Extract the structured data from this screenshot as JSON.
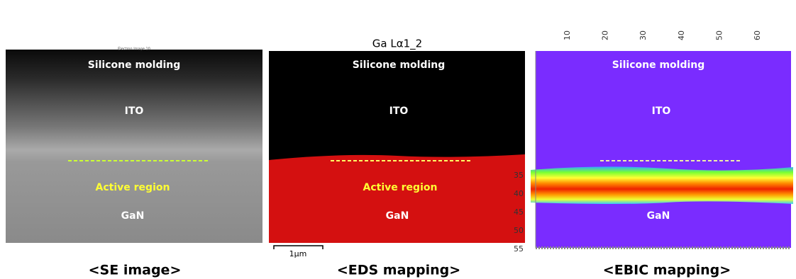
{
  "panels": [
    {
      "header": "Electron Image 10",
      "caption": "<SE image>",
      "labels": {
        "top": "Silicone molding",
        "middle": "ITO",
        "active": "Active region",
        "bottom": "GaN"
      }
    },
    {
      "title": "Ga Lα1_2",
      "scale_bar": "1μm",
      "caption": "<EDS mapping>",
      "labels": {
        "top": "Silicone molding",
        "middle": "ITO",
        "active": "Active region",
        "bottom": "GaN"
      }
    },
    {
      "caption": "<EBIC mapping>",
      "labels": {
        "top": "Silicone molding",
        "middle": "ITO",
        "bottom": "GaN"
      },
      "x_ticks": [
        "10",
        "20",
        "30",
        "40",
        "50",
        "60"
      ],
      "y_ticks": [
        "35",
        "40",
        "45",
        "50",
        "55"
      ]
    }
  ]
}
